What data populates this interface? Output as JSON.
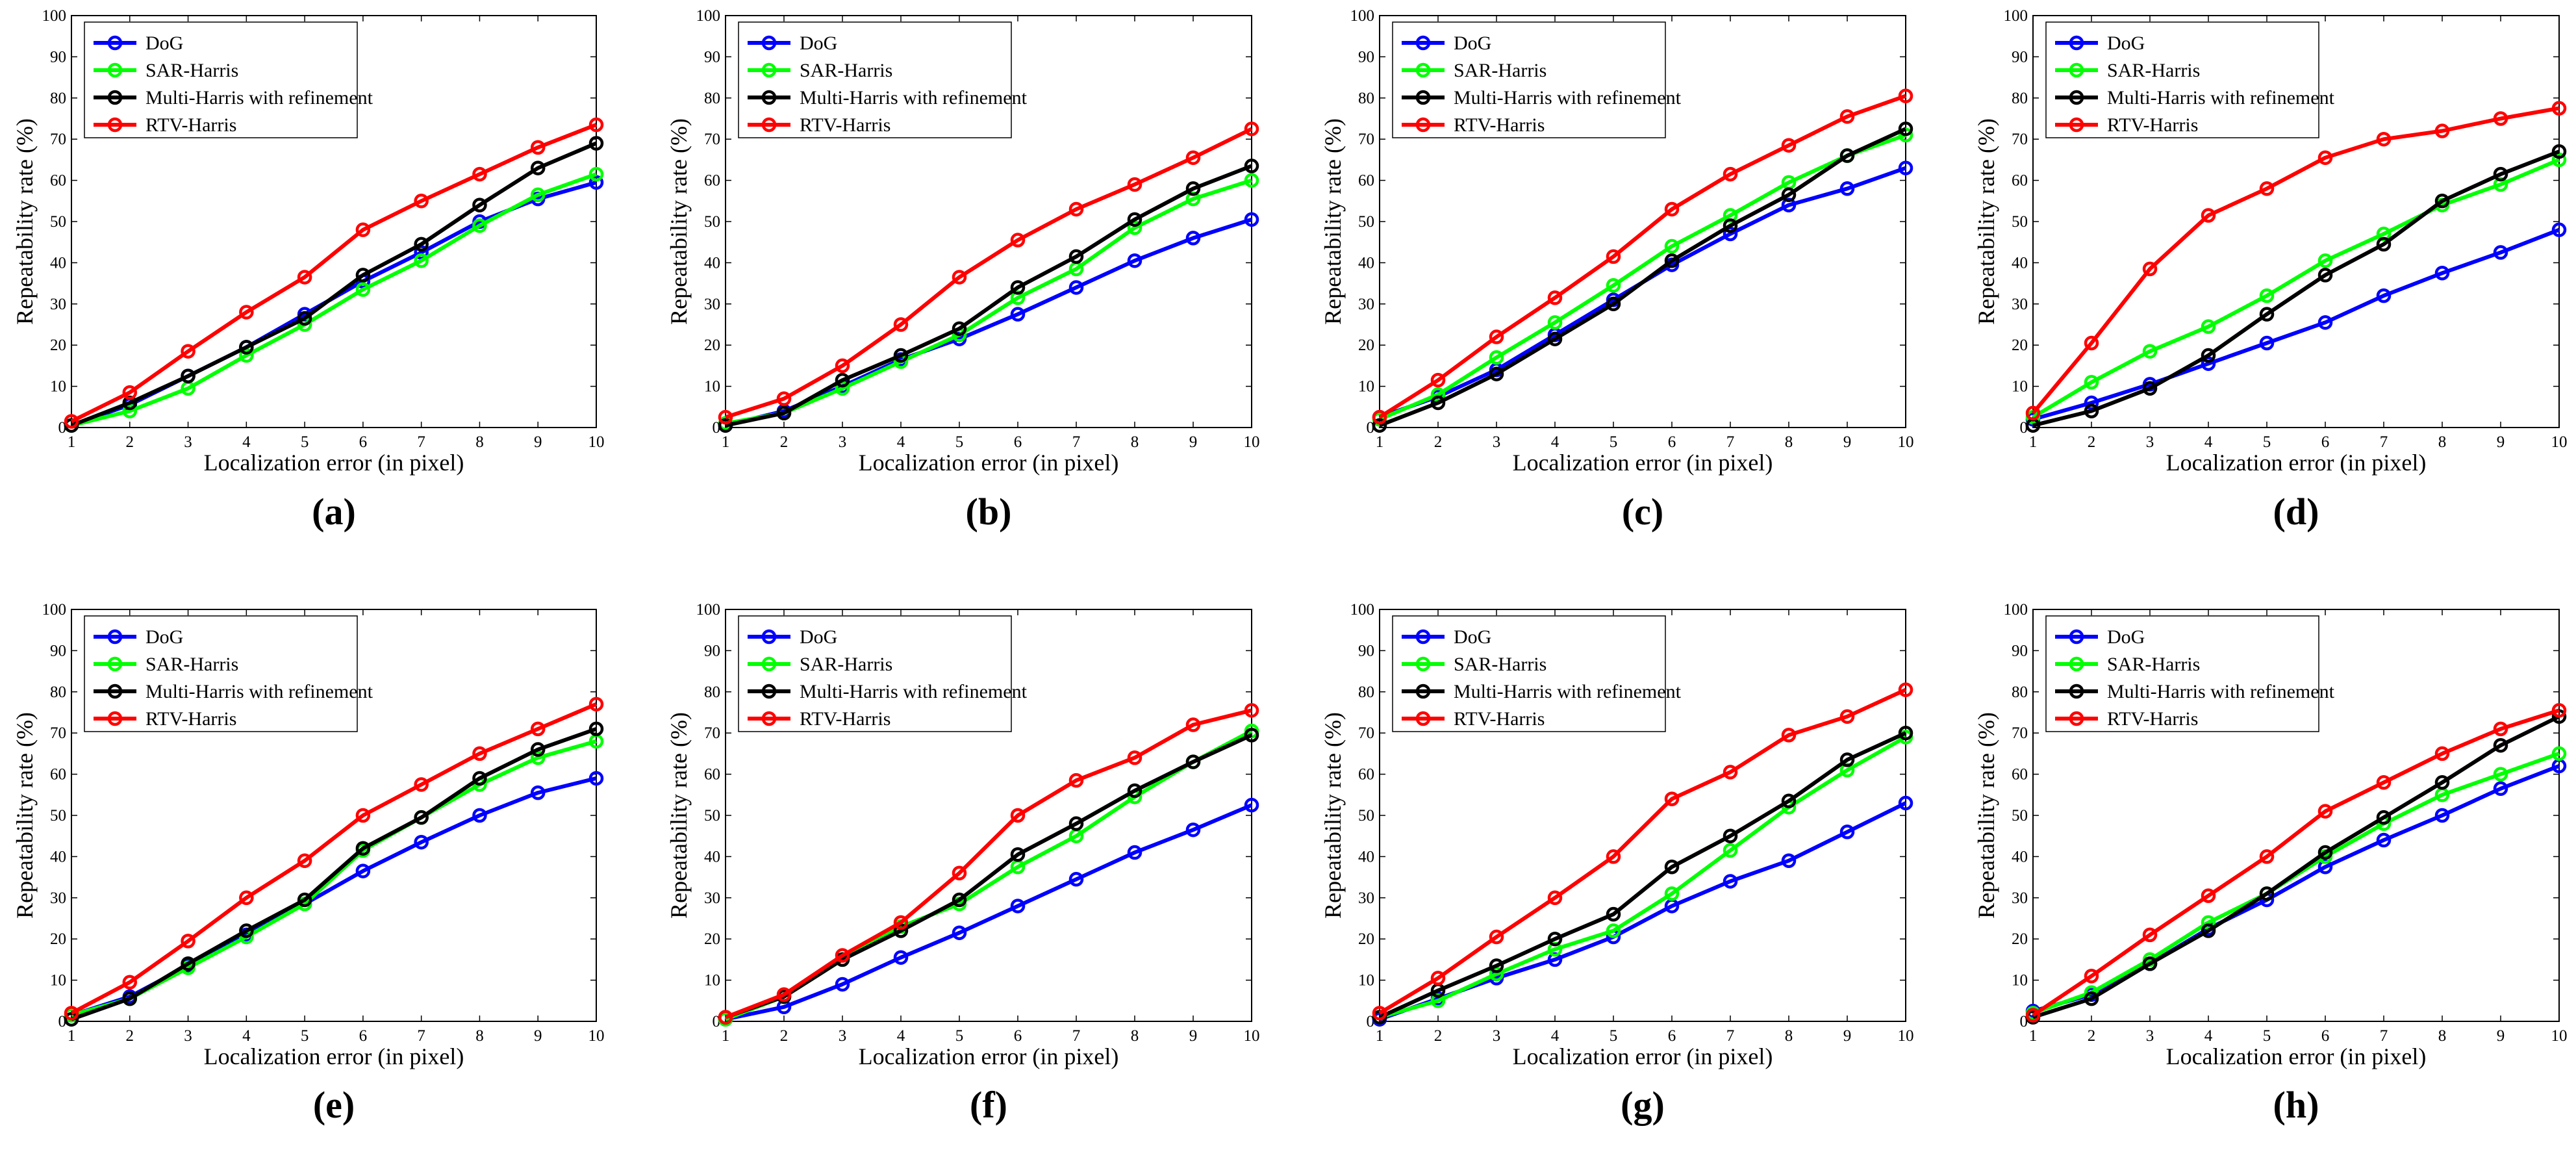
{
  "series_names": [
    "DoG",
    "SAR-Harris",
    "Multi-Harris with refinement",
    "RTV-Harris"
  ],
  "colors": {
    "DoG": "#0000ff",
    "SAR-Harris": "#00ff00",
    "Multi-Harris with refinement": "#000000",
    "RTV-Harris": "#ff0000",
    "axis": "#000000"
  },
  "chart_data": [
    {
      "type": "line",
      "panel_label": "(a)",
      "xlabel": "Localization error (in pixel)",
      "ylabel": "Repeatability rate (%)",
      "x": [
        1,
        2,
        3,
        4,
        5,
        6,
        7,
        8,
        9,
        10
      ],
      "xlim": [
        1,
        10
      ],
      "ylim": [
        0,
        100
      ],
      "xticks": [
        "1",
        "2",
        "3",
        "4",
        "5",
        "6",
        "7",
        "8",
        "9",
        "10"
      ],
      "yticks": [
        "0",
        "10",
        "20",
        "30",
        "40",
        "50",
        "60",
        "70",
        "80",
        "90",
        "100"
      ],
      "legend": "top-left",
      "series": [
        {
          "name": "DoG",
          "values": [
            0.5,
            5.5,
            12.5,
            19.5,
            27.5,
            35.5,
            42.5,
            50,
            55.5,
            59.5
          ]
        },
        {
          "name": "SAR-Harris",
          "values": [
            0.5,
            4,
            9.5,
            17.5,
            25,
            33.5,
            40.5,
            49,
            56.5,
            61.5
          ]
        },
        {
          "name": "Multi-Harris with refinement",
          "values": [
            0.5,
            6,
            12.5,
            19.5,
            26.5,
            37,
            44.5,
            54,
            63,
            69
          ]
        },
        {
          "name": "RTV-Harris",
          "values": [
            1.5,
            8.5,
            18.5,
            28,
            36.5,
            48,
            55,
            61.5,
            68,
            73.5
          ]
        }
      ]
    },
    {
      "type": "line",
      "panel_label": "(b)",
      "xlabel": "Localization error (in pixel)",
      "ylabel": "Repeatability rate (%)",
      "x": [
        1,
        2,
        3,
        4,
        5,
        6,
        7,
        8,
        9,
        10
      ],
      "xlim": [
        1,
        10
      ],
      "ylim": [
        0,
        100
      ],
      "xticks": [
        "1",
        "2",
        "3",
        "4",
        "5",
        "6",
        "7",
        "8",
        "9",
        "10"
      ],
      "yticks": [
        "0",
        "10",
        "20",
        "30",
        "40",
        "50",
        "60",
        "70",
        "80",
        "90",
        "100"
      ],
      "legend": "top-left",
      "series": [
        {
          "name": "DoG",
          "values": [
            0.5,
            4,
            10,
            16.5,
            21.5,
            27.5,
            34,
            40.5,
            46,
            50.5
          ]
        },
        {
          "name": "SAR-Harris",
          "values": [
            1,
            3.5,
            9.5,
            16,
            22.5,
            31.5,
            38.5,
            48.5,
            55.5,
            60
          ]
        },
        {
          "name": "Multi-Harris with refinement",
          "values": [
            0.5,
            3.5,
            11.5,
            17.5,
            24,
            34,
            41.5,
            50.5,
            58,
            63.5
          ]
        },
        {
          "name": "RTV-Harris",
          "values": [
            2.5,
            7,
            15,
            25,
            36.5,
            45.5,
            53,
            59,
            65.5,
            72.5
          ]
        }
      ]
    },
    {
      "type": "line",
      "panel_label": "(c)",
      "xlabel": "Localization error (in pixel)",
      "ylabel": "Repeatability rate (%)",
      "x": [
        1,
        2,
        3,
        4,
        5,
        6,
        7,
        8,
        9,
        10
      ],
      "xlim": [
        1,
        10
      ],
      "ylim": [
        0,
        100
      ],
      "xticks": [
        "1",
        "2",
        "3",
        "4",
        "5",
        "6",
        "7",
        "8",
        "9",
        "10"
      ],
      "yticks": [
        "0",
        "10",
        "20",
        "30",
        "40",
        "50",
        "60",
        "70",
        "80",
        "90",
        "100"
      ],
      "legend": "top-left",
      "series": [
        {
          "name": "DoG",
          "values": [
            2.5,
            7.5,
            14,
            22.5,
            31,
            39.5,
            47,
            54,
            58,
            63
          ]
        },
        {
          "name": "SAR-Harris",
          "values": [
            2,
            8,
            17,
            25.5,
            34.5,
            44,
            51.5,
            59.5,
            66,
            71
          ]
        },
        {
          "name": "Multi-Harris with refinement",
          "values": [
            0.5,
            6,
            13,
            21.5,
            30,
            40.5,
            49,
            56.5,
            66,
            72.5
          ]
        },
        {
          "name": "RTV-Harris",
          "values": [
            2.5,
            11.5,
            22,
            31.5,
            41.5,
            53,
            61.5,
            68.5,
            75.5,
            80.5
          ]
        }
      ]
    },
    {
      "type": "line",
      "panel_label": "(d)",
      "xlabel": "Localization error (in pixel)",
      "ylabel": "Repeatability rate (%)",
      "x": [
        1,
        2,
        3,
        4,
        5,
        6,
        7,
        8,
        9,
        10
      ],
      "xlim": [
        1,
        10
      ],
      "ylim": [
        0,
        100
      ],
      "xticks": [
        "1",
        "2",
        "3",
        "4",
        "5",
        "6",
        "7",
        "8",
        "9",
        "10"
      ],
      "yticks": [
        "0",
        "10",
        "20",
        "30",
        "40",
        "50",
        "60",
        "70",
        "80",
        "90",
        "100"
      ],
      "legend": "top-left",
      "series": [
        {
          "name": "DoG",
          "values": [
            2,
            6,
            10.5,
            15.5,
            20.5,
            25.5,
            32,
            37.5,
            42.5,
            48
          ]
        },
        {
          "name": "SAR-Harris",
          "values": [
            2.5,
            11,
            18.5,
            24.5,
            32,
            40.5,
            47,
            54,
            59,
            65
          ]
        },
        {
          "name": "Multi-Harris with refinement",
          "values": [
            0.5,
            4,
            9.5,
            17.5,
            27.5,
            37,
            44.5,
            55,
            61.5,
            67
          ]
        },
        {
          "name": "RTV-Harris",
          "values": [
            3.5,
            20.5,
            38.5,
            51.5,
            58,
            65.5,
            70,
            72,
            75,
            77.5
          ]
        }
      ]
    },
    {
      "type": "line",
      "panel_label": "(e)",
      "xlabel": "Localization error (in pixel)",
      "ylabel": "Repeatability rate (%)",
      "x": [
        1,
        2,
        3,
        4,
        5,
        6,
        7,
        8,
        9,
        10
      ],
      "xlim": [
        1,
        10
      ],
      "ylim": [
        0,
        100
      ],
      "xticks": [
        "1",
        "2",
        "3",
        "4",
        "5",
        "6",
        "7",
        "8",
        "9",
        "10"
      ],
      "yticks": [
        "0",
        "10",
        "20",
        "30",
        "40",
        "50",
        "60",
        "70",
        "80",
        "90",
        "100"
      ],
      "legend": "top-left",
      "series": [
        {
          "name": "DoG",
          "values": [
            1.5,
            6,
            13.5,
            21,
            28.5,
            36.5,
            43.5,
            50,
            55.5,
            59
          ]
        },
        {
          "name": "SAR-Harris",
          "values": [
            1.5,
            5.5,
            13,
            20.5,
            28.5,
            41.5,
            49.5,
            57.5,
            64,
            68
          ]
        },
        {
          "name": "Multi-Harris with refinement",
          "values": [
            0.5,
            5.5,
            14,
            22,
            29.5,
            42,
            49.5,
            59,
            66,
            71
          ]
        },
        {
          "name": "RTV-Harris",
          "values": [
            2,
            9.5,
            19.5,
            30,
            39,
            50,
            57.5,
            65,
            71,
            77
          ]
        }
      ]
    },
    {
      "type": "line",
      "panel_label": "(f)",
      "xlabel": "Localization error (in pixel)",
      "ylabel": "Repeatability rate (%)",
      "x": [
        1,
        2,
        3,
        4,
        5,
        6,
        7,
        8,
        9,
        10
      ],
      "xlim": [
        1,
        10
      ],
      "ylim": [
        0,
        100
      ],
      "xticks": [
        "1",
        "2",
        "3",
        "4",
        "5",
        "6",
        "7",
        "8",
        "9",
        "10"
      ],
      "yticks": [
        "0",
        "10",
        "20",
        "30",
        "40",
        "50",
        "60",
        "70",
        "80",
        "90",
        "100"
      ],
      "legend": "top-left",
      "series": [
        {
          "name": "DoG",
          "values": [
            0.5,
            3.5,
            9,
            15.5,
            21.5,
            28,
            34.5,
            41,
            46.5,
            52.5
          ]
        },
        {
          "name": "SAR-Harris",
          "values": [
            0.5,
            6,
            15,
            23,
            28.5,
            37.5,
            45,
            54.5,
            63,
            70.5
          ]
        },
        {
          "name": "Multi-Harris with refinement",
          "values": [
            1,
            6,
            15,
            22,
            29.5,
            40.5,
            48,
            56,
            63,
            69.5
          ]
        },
        {
          "name": "RTV-Harris",
          "values": [
            1,
            6.5,
            16,
            24,
            36,
            50,
            58.5,
            64,
            72,
            75.5
          ]
        }
      ]
    },
    {
      "type": "line",
      "panel_label": "(g)",
      "xlabel": "Localization error (in pixel)",
      "ylabel": "Repeatability rate (%)",
      "x": [
        1,
        2,
        3,
        4,
        5,
        6,
        7,
        8,
        9,
        10
      ],
      "xlim": [
        1,
        10
      ],
      "ylim": [
        0,
        100
      ],
      "xticks": [
        "1",
        "2",
        "3",
        "4",
        "5",
        "6",
        "7",
        "8",
        "9",
        "10"
      ],
      "yticks": [
        "0",
        "10",
        "20",
        "30",
        "40",
        "50",
        "60",
        "70",
        "80",
        "90",
        "100"
      ],
      "legend": "top-left",
      "series": [
        {
          "name": "DoG",
          "values": [
            0.5,
            5.5,
            10.5,
            15,
            20.5,
            28,
            34,
            39,
            46,
            53
          ]
        },
        {
          "name": "SAR-Harris",
          "values": [
            1,
            5,
            11.5,
            17.5,
            22,
            31,
            41.5,
            52,
            61,
            69
          ]
        },
        {
          "name": "Multi-Harris with refinement",
          "values": [
            1,
            7.5,
            13.5,
            20,
            26,
            37.5,
            45,
            53.5,
            63.5,
            70
          ]
        },
        {
          "name": "RTV-Harris",
          "values": [
            2,
            10.5,
            20.5,
            30,
            40,
            54,
            60.5,
            69.5,
            74,
            80.5
          ]
        }
      ]
    },
    {
      "type": "line",
      "panel_label": "(h)",
      "xlabel": "Localization error (in pixel)",
      "ylabel": "Repeatability rate (%)",
      "x": [
        1,
        2,
        3,
        4,
        5,
        6,
        7,
        8,
        9,
        10
      ],
      "xlim": [
        1,
        10
      ],
      "ylim": [
        0,
        100
      ],
      "xticks": [
        "1",
        "2",
        "3",
        "4",
        "5",
        "6",
        "7",
        "8",
        "9",
        "10"
      ],
      "yticks": [
        "0",
        "10",
        "20",
        "30",
        "40",
        "50",
        "60",
        "70",
        "80",
        "90",
        "100"
      ],
      "legend": "top-left",
      "series": [
        {
          "name": "DoG",
          "values": [
            2.5,
            6.5,
            14,
            22.5,
            29.5,
            37.5,
            44,
            50,
            56.5,
            62
          ]
        },
        {
          "name": "SAR-Harris",
          "values": [
            2,
            7,
            15,
            24,
            31,
            40,
            48,
            55,
            60,
            65
          ]
        },
        {
          "name": "Multi-Harris with refinement",
          "values": [
            1,
            5.5,
            14,
            22,
            31,
            41,
            49.5,
            58,
            67,
            74
          ]
        },
        {
          "name": "RTV-Harris",
          "values": [
            1.5,
            11,
            21,
            30.5,
            40,
            51,
            58,
            65,
            71,
            75.5
          ]
        }
      ]
    }
  ]
}
